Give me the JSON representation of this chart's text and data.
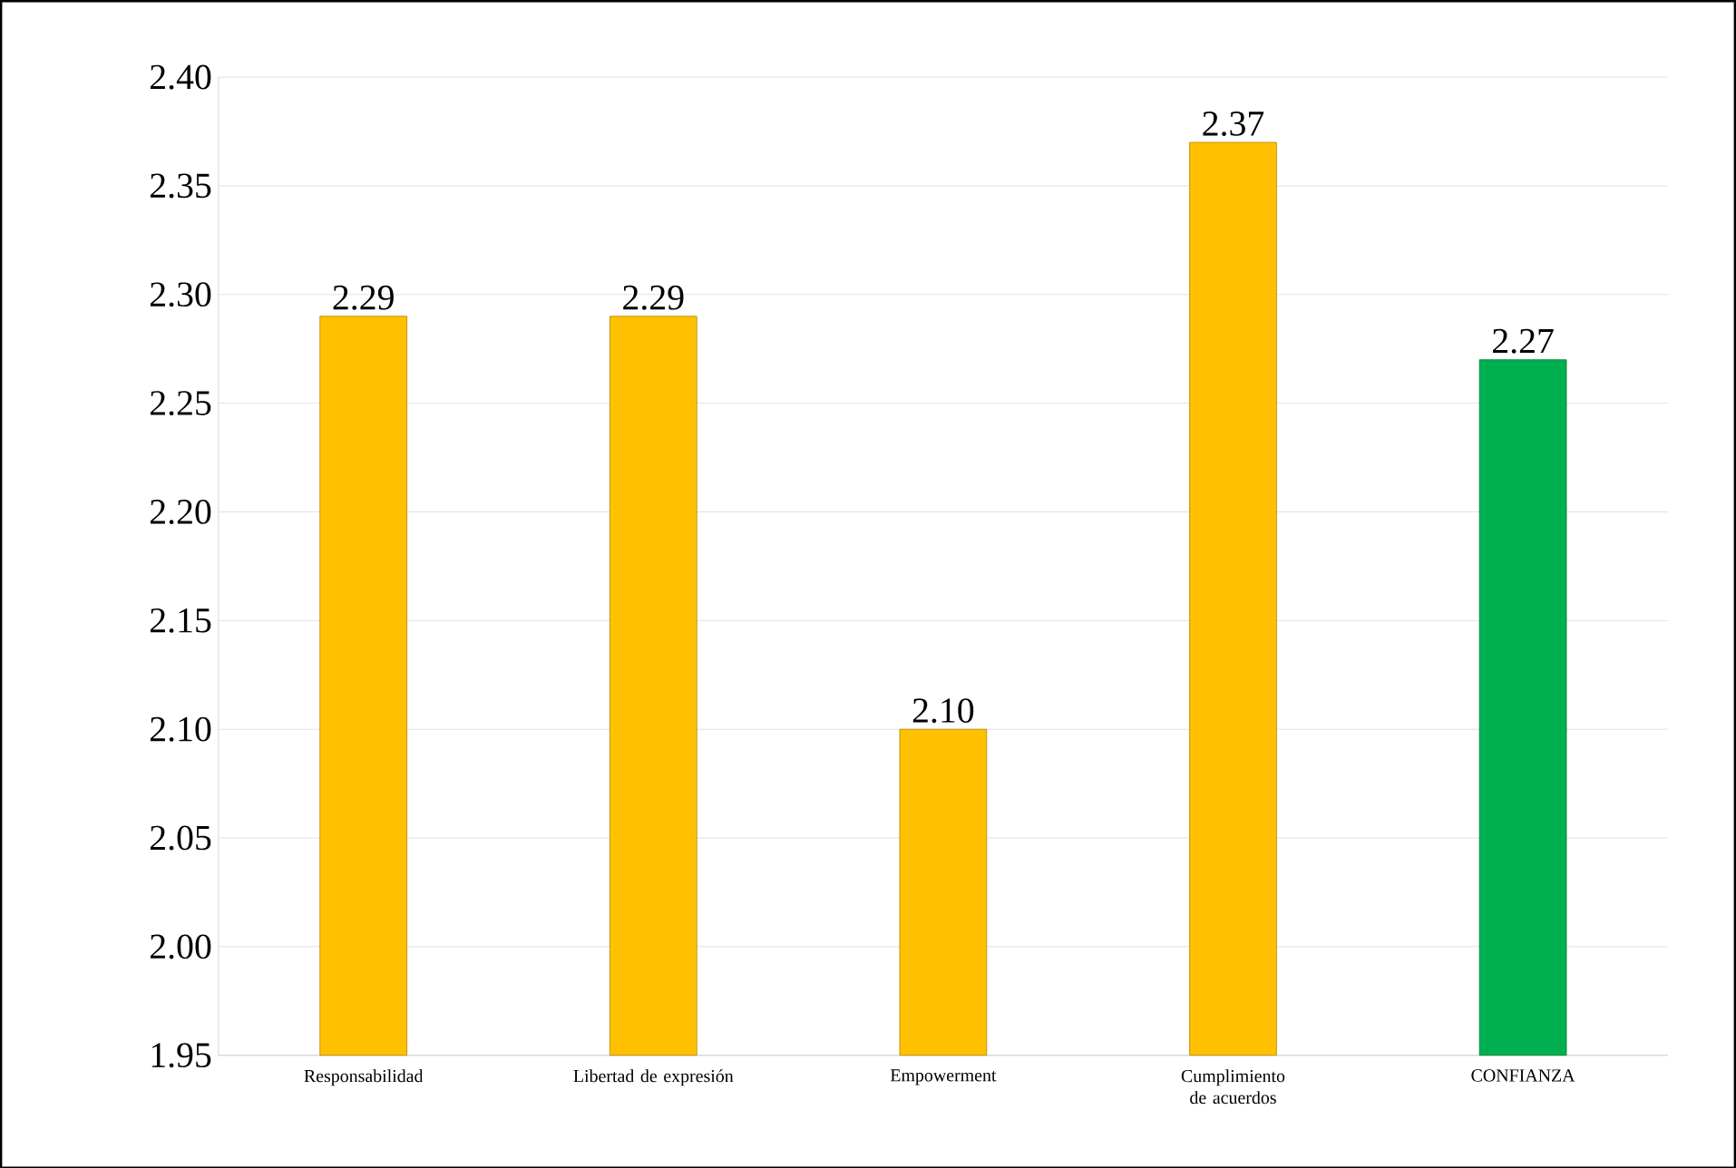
{
  "chart_data": {
    "type": "bar",
    "categories": [
      "Responsabilidad",
      "Libertad de expresión",
      "Empowerment",
      "Cumplimiento de acuerdos",
      "CONFIANZA"
    ],
    "values": [
      2.29,
      2.29,
      2.1,
      2.37,
      2.27
    ],
    "colors": [
      "#ffc000",
      "#ffc000",
      "#ffc000",
      "#ffc000",
      "#00b050"
    ],
    "value_labels": [
      "2.29",
      "2.29",
      "2.10",
      "2.37",
      "2.27"
    ],
    "ylim": [
      1.95,
      2.4
    ],
    "yticks": [
      {
        "value": 1.95,
        "label": "1.95"
      },
      {
        "value": 2.0,
        "label": "2.00"
      },
      {
        "value": 2.05,
        "label": "2.05"
      },
      {
        "value": 2.1,
        "label": "2.10"
      },
      {
        "value": 2.15,
        "label": "2.15"
      },
      {
        "value": 2.2,
        "label": "2.20"
      },
      {
        "value": 2.25,
        "label": "2.25"
      },
      {
        "value": 2.3,
        "label": "2.30"
      },
      {
        "value": 2.35,
        "label": "2.35"
      },
      {
        "value": 2.4,
        "label": "2.40"
      }
    ],
    "grid": "y"
  }
}
